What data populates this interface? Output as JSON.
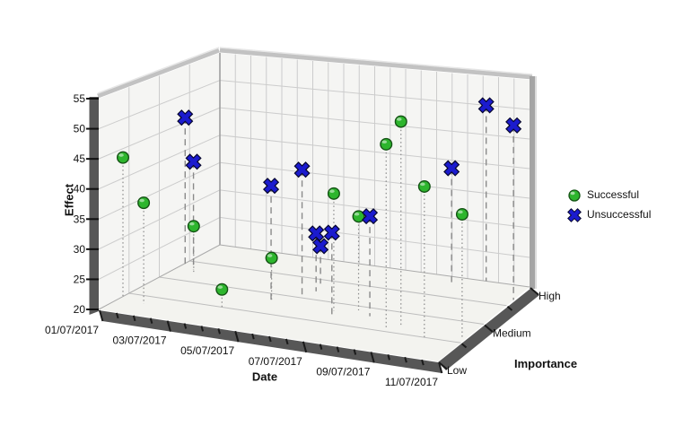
{
  "chart_data": {
    "type": "scatter",
    "subtype": "3d-scatterplot",
    "title": "",
    "xlabel": "Date",
    "ylabel": "Importance",
    "zlabel": "Effect",
    "x_ticks": [
      "01/07/2017",
      "03/07/2017",
      "05/07/2017",
      "07/07/2017",
      "09/07/2017",
      "11/07/2017"
    ],
    "x_range_days": [
      0,
      10
    ],
    "y_ticks": [
      "Low",
      "Medium",
      "High"
    ],
    "z_ticks": [
      55,
      50,
      45,
      40,
      35,
      30,
      25,
      20
    ],
    "z_range": [
      20,
      55
    ],
    "grid": true,
    "legend_position": "right",
    "legend": [
      {
        "label": "Successful",
        "marker": "circle",
        "color": "#2db52d"
      },
      {
        "label": "Unsuccessful",
        "marker": "x",
        "color": "#1b1bce"
      }
    ],
    "points": [
      {
        "status": "Successful",
        "date": "01/07/2017",
        "importance": "Low",
        "effect": 43.5,
        "day_value": 0.0,
        "importance_value": 0.4
      },
      {
        "status": "Successful",
        "date": "02/07/2017",
        "importance": "Low",
        "effect": 37,
        "day_value": 0.8,
        "importance_value": 0.3
      },
      {
        "status": "Unsuccessful",
        "date": "01/07/2017",
        "importance": "Medium",
        "effect": 46,
        "day_value": 0.05,
        "importance_value": 1.4
      },
      {
        "status": "Unsuccessful",
        "date": "02/07/2017",
        "importance": "Medium",
        "effect": 39,
        "day_value": 0.5,
        "importance_value": 1.3
      },
      {
        "status": "Successful",
        "date": "02/07/2017",
        "importance": "Medium",
        "effect": 28,
        "day_value": 0.6,
        "importance_value": 1.25
      },
      {
        "status": "Successful",
        "date": "04/07/2017",
        "importance": "Low",
        "effect": 23,
        "day_value": 2.8,
        "importance_value": 0.5
      },
      {
        "status": "Successful",
        "date": "05/07/2017",
        "importance": "Medium",
        "effect": 27.5,
        "day_value": 3.8,
        "importance_value": 0.8
      },
      {
        "status": "Unsuccessful",
        "date": "05/07/2017",
        "importance": "Medium",
        "effect": 39.5,
        "day_value": 3.7,
        "importance_value": 0.85
      },
      {
        "status": "Unsuccessful",
        "date": "05/07/2017",
        "importance": "Medium",
        "effect": 42,
        "day_value": 4.4,
        "importance_value": 1.0
      },
      {
        "status": "Unsuccessful",
        "date": "05/07/2017",
        "importance": "Medium",
        "effect": 26.5,
        "day_value": 4.3,
        "importance_value": 1.4
      },
      {
        "status": "Unsuccessful",
        "date": "06/07/2017",
        "importance": "Medium",
        "effect": 30,
        "day_value": 4.5,
        "importance_value": 1.2
      },
      {
        "status": "Unsuccessful",
        "date": "07/07/2017",
        "importance": "Medium",
        "effect": 34,
        "day_value": 5.8,
        "importance_value": 0.7
      },
      {
        "status": "Successful",
        "date": "07/07/2017",
        "importance": "Medium",
        "effect": 40,
        "day_value": 5.7,
        "importance_value": 0.8
      },
      {
        "status": "Successful",
        "date": "07/07/2017",
        "importance": "Medium",
        "effect": 36,
        "day_value": 6.3,
        "importance_value": 0.9
      },
      {
        "status": "Unsuccessful",
        "date": "08/07/2017",
        "importance": "Medium",
        "effect": 37,
        "day_value": 6.8,
        "importance_value": 0.8
      },
      {
        "status": "Successful",
        "date": "09/07/2017",
        "importance": "Medium",
        "effect": 51,
        "day_value": 7.6,
        "importance_value": 0.6
      },
      {
        "status": "Successful",
        "date": "09/07/2017",
        "importance": "Medium",
        "effect": 54.5,
        "day_value": 7.9,
        "importance_value": 0.7
      },
      {
        "status": "Successful",
        "date": "10/07/2017",
        "importance": "Low",
        "effect": 45.5,
        "day_value": 8.9,
        "importance_value": 0.5
      },
      {
        "status": "Unsuccessful",
        "date": "09/07/2017",
        "importance": "High",
        "effect": 40,
        "day_value": 7.8,
        "importance_value": 1.8
      },
      {
        "status": "Successful",
        "date": "11/07/2017",
        "importance": "Medium",
        "effect": 41,
        "day_value": 9.9,
        "importance_value": 0.6
      },
      {
        "status": "Unsuccessful",
        "date": "10/07/2017",
        "importance": "High",
        "effect": 50,
        "day_value": 8.6,
        "importance_value": 2.0
      },
      {
        "status": "Unsuccessful",
        "date": "11/07/2017",
        "importance": "High",
        "effect": 49.5,
        "day_value": 10.0,
        "importance_value": 1.65
      }
    ]
  },
  "colors": {
    "successful": "#2db52d",
    "successful_dark": "#145214",
    "unsuccessful": "#1b1bce",
    "unsuccessful_dark": "#06062e",
    "wall": "#f5f5f3",
    "floor": "#f3f3ef",
    "grid": "#cccccc",
    "floor_grid": "#bdbdbd",
    "axis_band": "#575757",
    "edge_light": "#c2c2c2",
    "edge_side": "#a5a5a5",
    "tick": "#111111",
    "dropline": "#8a8a8a"
  }
}
